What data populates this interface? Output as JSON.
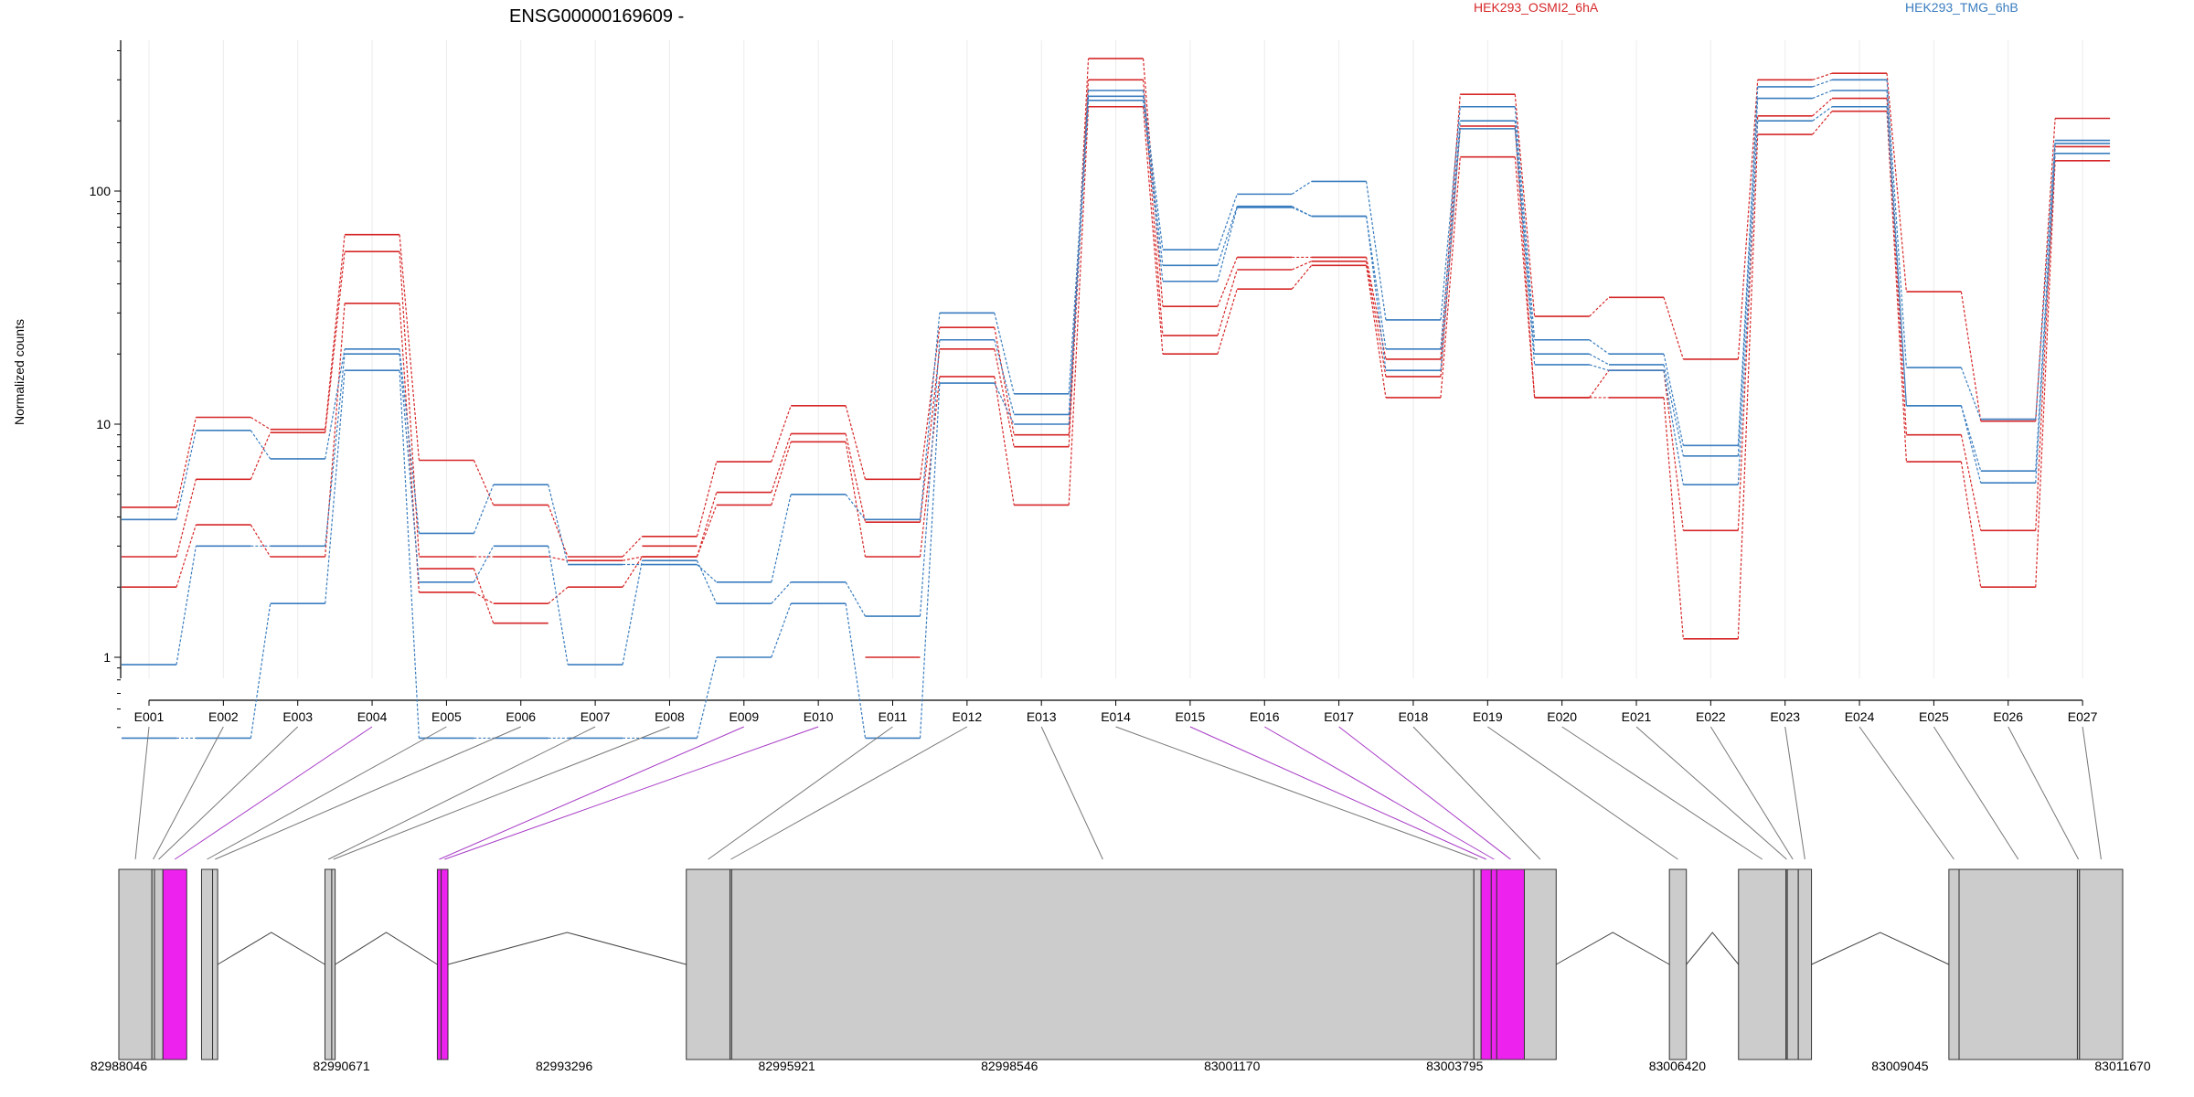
{
  "title": "ENSG00000169609 -",
  "ylabel": "Normalized counts",
  "colors": {
    "OSMI2": "#d62728",
    "TMG": "#3a7dbf",
    "exon": "#cccccc",
    "highlight": "#ee22ee",
    "link": "#777777",
    "highlight_link": "#a83cc7"
  },
  "chart_data": {
    "type": "line",
    "title": "ENSG00000169609 -",
    "ylabel": "Normalized counts",
    "yscale": "log",
    "ylim": [
      0.45,
      450
    ],
    "yticks": [
      1,
      10,
      100
    ],
    "ytick_labels": [
      "1",
      "10",
      "100"
    ],
    "grid": "vertical",
    "legend": [
      {
        "name": "HEK293_OSMI2_6hA",
        "color": "#d62728"
      },
      {
        "name": "HEK293_TMG_6hB",
        "color": "#3a7dbf"
      }
    ],
    "categories": [
      "E001",
      "E002",
      "E003",
      "E004",
      "E005",
      "E006",
      "E007",
      "E008",
      "E009",
      "E010",
      "E011",
      "E012",
      "E013",
      "E014",
      "E015",
      "E016",
      "E017",
      "E018",
      "E019",
      "E020",
      "E021",
      "E022",
      "E023",
      "E024",
      "E025",
      "E026",
      "E027"
    ],
    "highlighted_exons": [
      "E004",
      "E009",
      "E010",
      "E015",
      "E016",
      "E017"
    ],
    "series": [
      {
        "group": "OSMI2",
        "values": [
          4.4,
          10.7,
          9.5,
          65,
          7.0,
          4.5,
          2.7,
          3.3,
          6.9,
          12.0,
          5.8,
          26,
          9.0,
          370,
          32,
          52,
          52,
          19,
          260,
          29,
          35,
          19,
          300,
          320,
          37,
          10.3,
          205
        ]
      },
      {
        "group": "OSMI2",
        "values": [
          2.7,
          5.8,
          9.2,
          55,
          2.7,
          2.7,
          2.6,
          2.7,
          5.1,
          9.1,
          3.8,
          21,
          8.0,
          300,
          24,
          46,
          50,
          16,
          190,
          13,
          17,
          3.5,
          210,
          250,
          9.0,
          3.5,
          155
        ]
      },
      {
        "group": "OSMI2",
        "values": [
          2.0,
          3.7,
          2.7,
          33,
          1.9,
          1.7,
          2.0,
          2.7,
          4.5,
          8.4,
          2.7,
          16,
          4.5,
          230,
          20,
          38,
          48,
          13,
          140,
          13,
          13,
          1.2,
          175,
          220,
          6.9,
          2.0,
          135
        ]
      },
      {
        "group": "OSMI2",
        "values": [
          null,
          null,
          null,
          null,
          2.4,
          1.4,
          null,
          3.0,
          null,
          null,
          1.0,
          null,
          null,
          null,
          null,
          null,
          null,
          null,
          null,
          null,
          null,
          null,
          null,
          null,
          null,
          null,
          null
        ]
      },
      {
        "group": "TMG",
        "values": [
          3.9,
          9.4,
          7.1,
          21,
          3.4,
          5.5,
          2.5,
          2.5,
          2.1,
          5.0,
          3.9,
          30,
          13.5,
          270,
          56,
          97,
          110,
          28,
          230,
          23,
          20,
          8.1,
          280,
          300,
          17.5,
          10.5,
          165
        ]
      },
      {
        "group": "TMG",
        "values": [
          0.93,
          3.0,
          3.0,
          20,
          2.1,
          3.0,
          0.93,
          2.6,
          1.7,
          2.1,
          1.5,
          23,
          11.0,
          255,
          48,
          86,
          78,
          21,
          200,
          20,
          18,
          7.3,
          250,
          270,
          12,
          6.3,
          160
        ]
      },
      {
        "group": "TMG",
        "values": [
          0.45,
          0.45,
          1.7,
          17,
          0.45,
          0.45,
          0.45,
          0.45,
          1.0,
          1.7,
          0.45,
          15,
          10.0,
          245,
          41,
          85,
          78,
          17,
          185,
          18,
          17,
          5.5,
          200,
          230,
          12,
          5.6,
          145
        ]
      }
    ],
    "genomic_axis": {
      "tick_labels": [
        "82988046",
        "82990671",
        "82993296",
        "82995921",
        "82998546",
        "83001170",
        "83003795",
        "83006420",
        "83009045",
        "83011670"
      ],
      "exons": [
        {
          "id": "E001",
          "start": 82988046,
          "end": 82988436
        },
        {
          "id": "E002",
          "start": 82988436,
          "end": 82988466
        },
        {
          "id": "E003",
          "start": 82988466,
          "end": 82988566
        },
        {
          "id": "E004",
          "start": 82988566,
          "end": 82988846
        },
        {
          "id": "E005",
          "start": 82989021,
          "end": 82989151
        },
        {
          "id": "E006",
          "start": 82989151,
          "end": 82989211
        },
        {
          "id": "E007",
          "start": 82990476,
          "end": 82990556
        },
        {
          "id": "E008",
          "start": 82990556,
          "end": 82990596
        },
        {
          "id": "E009",
          "start": 82991801,
          "end": 82991846
        },
        {
          "id": "E010",
          "start": 82991846,
          "end": 82991926
        },
        {
          "id": "E011",
          "start": 82994736,
          "end": 82995251
        },
        {
          "id": "E012",
          "start": 82995251,
          "end": 82995271
        },
        {
          "id": "E013",
          "start": 82995271,
          "end": 83004021
        },
        {
          "id": "E014",
          "start": 83004021,
          "end": 83004106
        },
        {
          "id": "E015",
          "start": 83004106,
          "end": 83004226
        },
        {
          "id": "E016",
          "start": 83004226,
          "end": 83004291
        },
        {
          "id": "E017",
          "start": 83004291,
          "end": 83004616
        },
        {
          "id": "E018",
          "start": 83004616,
          "end": 83004991
        },
        {
          "id": "E019",
          "start": 83006326,
          "end": 83006526
        },
        {
          "id": "E020",
          "start": 83007141,
          "end": 83007701
        },
        {
          "id": "E021",
          "start": 83007701,
          "end": 83007716
        },
        {
          "id": "E022",
          "start": 83007716,
          "end": 83007846
        },
        {
          "id": "E023",
          "start": 83007846,
          "end": 83008001
        },
        {
          "id": "E024",
          "start": 83009621,
          "end": 83009741
        },
        {
          "id": "E025",
          "start": 83009741,
          "end": 83011136
        },
        {
          "id": "E026",
          "start": 83011136,
          "end": 83011161
        },
        {
          "id": "E027",
          "start": 83011161,
          "end": 83011670
        }
      ],
      "introns": [
        [
          82989211,
          82990476
        ],
        [
          82990596,
          82991801
        ],
        [
          82991926,
          82994736
        ],
        [
          83004991,
          83006326
        ],
        [
          83006526,
          83007141
        ],
        [
          83008001,
          83009621
        ]
      ]
    }
  }
}
